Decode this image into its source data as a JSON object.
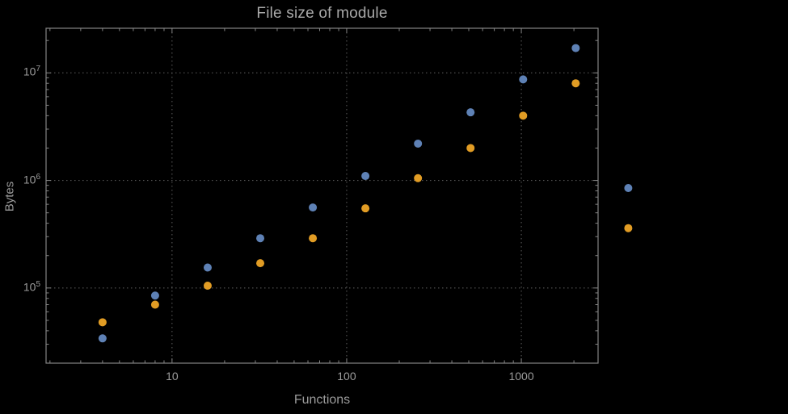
{
  "window": {
    "background_color": "#000000"
  },
  "chart": {
    "title": "File size of module",
    "xlabel": "Functions",
    "ylabel": "Bytes"
  },
  "colors": {
    "background": "#000000",
    "frame": "#848484",
    "grid": "#5f5f5f",
    "text": "#9b9b9b",
    "title_text": "#a9a9a9",
    "series_blue": "#5E81B5",
    "series_orange": "#E19C24"
  },
  "chart_data": {
    "type": "scatter",
    "title": "File size of module",
    "xlabel": "Functions",
    "ylabel": "Bytes",
    "xscale": "log",
    "yscale": "log",
    "grid": "dotted lines at labeled decades",
    "legend": "none",
    "x": [
      4,
      8,
      16,
      32,
      64,
      128,
      256,
      512,
      1024,
      2048,
      4096
    ],
    "series": [
      {
        "name": "blue",
        "color": "#5E81B5",
        "values": [
          34000,
          85000,
          155000,
          290000,
          560000,
          1100000,
          2200000,
          4300000,
          8700000,
          17000000,
          850000
        ]
      },
      {
        "name": "orange",
        "color": "#E19C24",
        "values": [
          48000,
          70000,
          105000,
          170000,
          290000,
          550000,
          1050000,
          2000000,
          4000000,
          8000000,
          360000
        ]
      }
    ],
    "x_ticks": [
      10,
      100,
      1000
    ],
    "y_tick_exponents": [
      5,
      6,
      7
    ],
    "xlim": [
      1.9,
      2750
    ],
    "ylim": [
      20000,
      26000000
    ]
  }
}
